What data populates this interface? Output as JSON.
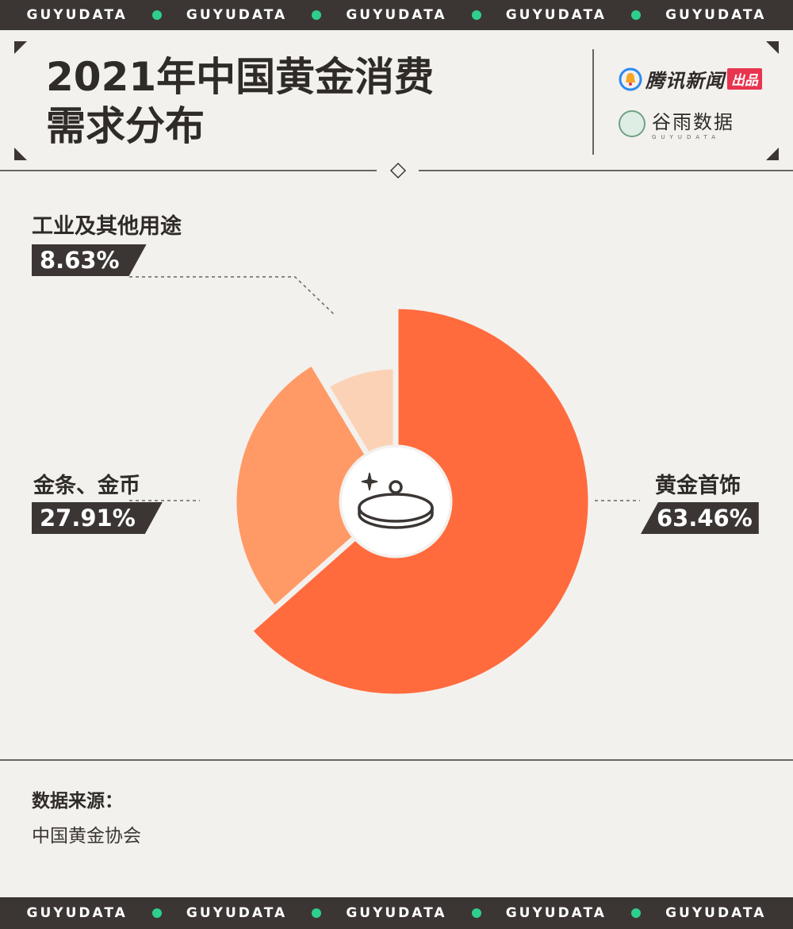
{
  "banner": {
    "top": [
      "GUYUDATA",
      "GUYUDATA",
      "GUYUDATA",
      "GUYUDATA",
      "GUYUDATA"
    ],
    "bottom": [
      "GUYUDATA",
      "GUYUDATA",
      "GUYUDATA",
      "GUYUDATA",
      "GUYUDATA"
    ]
  },
  "header": {
    "title_line1": "2021年中国黄金消费",
    "title_line2": "需求分布",
    "logo_tencent": "腾讯新闻",
    "logo_tencent_tag": "出品",
    "logo_guyu": "谷雨数据",
    "logo_guyu_sub": "GUYUDATA"
  },
  "chart_data": {
    "type": "pie",
    "title": "2021年中国黄金消费需求分布",
    "slices": [
      {
        "label": "黄金首饰",
        "value": 63.46,
        "value_label": "63.46%",
        "color": "#ff6b3d"
      },
      {
        "label": "金条、金币",
        "value": 27.91,
        "value_label": "27.91%",
        "color": "#ff9a66"
      },
      {
        "label": "工业及其他用途",
        "value": 8.63,
        "value_label": "8.63%",
        "color": "#fcd2b6"
      }
    ],
    "center_icon": "ring-icon"
  },
  "source": {
    "title": "数据来源：",
    "text": "中国黄金协会"
  },
  "colors": {
    "background": "#f3f1ee",
    "dark": "#3b3634",
    "accent_dot": "#2ecf8e"
  }
}
